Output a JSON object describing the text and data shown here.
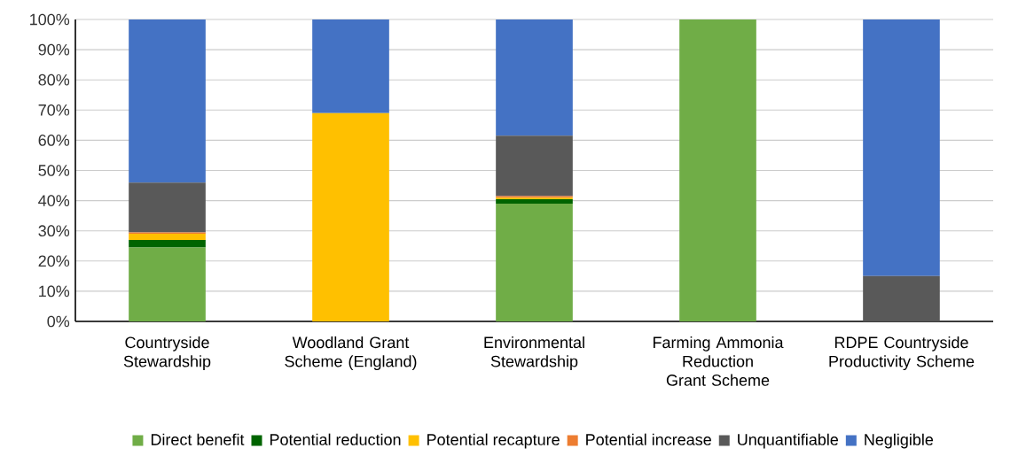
{
  "chart_data": {
    "type": "bar",
    "stacked": true,
    "categories": [
      "Countryside Stewardship",
      "Woodland Grant Scheme (England)",
      "Environmental Stewardship",
      "Farming Ammonia Reduction Grant Scheme",
      "RDPE Countryside Productivity Scheme"
    ],
    "series": [
      {
        "name": "Direct benefit",
        "color": "#70ad47",
        "values": [
          24.5,
          0,
          39,
          100,
          0
        ]
      },
      {
        "name": "Potential reduction",
        "color": "#006400",
        "values": [
          2.5,
          0,
          1.5,
          0,
          0
        ]
      },
      {
        "name": "Potential recapture",
        "color": "#ffc000",
        "values": [
          2,
          69,
          0.5,
          0,
          0
        ]
      },
      {
        "name": "Potential increase",
        "color": "#ed7d31",
        "values": [
          0.5,
          0,
          0.5,
          0,
          0
        ]
      },
      {
        "name": "Unquantifiable",
        "color": "#595959",
        "values": [
          16.5,
          0,
          20,
          0,
          15
        ]
      },
      {
        "name": "Negligible",
        "color": "#4472c4",
        "values": [
          54,
          31,
          38.5,
          0,
          85
        ]
      }
    ],
    "ylim": [
      0,
      100
    ],
    "yticks": [
      {
        "value": 0,
        "label": "0%"
      },
      {
        "value": 10,
        "label": "10%"
      },
      {
        "value": 20,
        "label": "20%"
      },
      {
        "value": 30,
        "label": "30%"
      },
      {
        "value": 40,
        "label": "40%"
      },
      {
        "value": 50,
        "label": "50%"
      },
      {
        "value": 60,
        "label": "60%"
      },
      {
        "value": 70,
        "label": "70%"
      },
      {
        "value": 80,
        "label": "80%"
      },
      {
        "value": 90,
        "label": "90%"
      },
      {
        "value": 100,
        "label": "100%"
      }
    ],
    "grid": "y",
    "legend": "bottom"
  }
}
